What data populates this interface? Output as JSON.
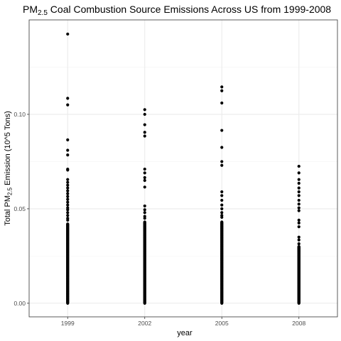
{
  "chart_data": {
    "type": "scatter",
    "title": {
      "prefix": "PM",
      "subscript": "2.5",
      "suffix": " Coal Combustion Source Emissions Across US from 1999-2008"
    },
    "xlabel": "year",
    "ylabel": {
      "prefix": "Total PM",
      "subscript": "2.5",
      "suffix": " Emission (10^5 Tons)"
    },
    "x_ticks": [
      "1999",
      "2002",
      "2005",
      "2008"
    ],
    "y_ticks": [
      {
        "value": 0,
        "label": "0.00"
      },
      {
        "value": 0.05,
        "label": "0.05"
      },
      {
        "value": 0.1,
        "label": "0.10"
      }
    ],
    "ylim": [
      -0.0072,
      0.15
    ],
    "xlim": [
      -0.5,
      3.5
    ],
    "grid": true,
    "background": "panel border, white",
    "point_color": "#000000",
    "grid_major_color": "#ebebeb",
    "grid_minor_color": "#f5f5f5",
    "panel_border_color": "#333333",
    "series": [
      {
        "x": "1999",
        "outliers": [
          0.1425,
          0.1085,
          0.105,
          0.0865,
          0.081,
          0.0785,
          0.071,
          0.0705,
          0.0655,
          0.064,
          0.0625,
          0.061,
          0.0595,
          0.058,
          0.0565,
          0.055,
          0.0535,
          0.052,
          0.0505,
          0.0495,
          0.048,
          0.0465,
          0.045,
          0.044
        ],
        "dense_from": 0.0,
        "dense_to": 0.042
      },
      {
        "x": "2002",
        "outliers": [
          0.1025,
          0.1,
          0.0945,
          0.0905,
          0.0885,
          0.071,
          0.069,
          0.0665,
          0.065,
          0.0615,
          0.0515,
          0.0495,
          0.048,
          0.046,
          0.045
        ],
        "dense_from": 0.0,
        "dense_to": 0.043
      },
      {
        "x": "2005",
        "outliers": [
          0.1145,
          0.1125,
          0.106,
          0.0915,
          0.0825,
          0.075,
          0.073,
          0.059,
          0.057,
          0.0545,
          0.052,
          0.05,
          0.048,
          0.0465,
          0.0455
        ],
        "dense_from": 0.0,
        "dense_to": 0.043
      },
      {
        "x": "2008",
        "outliers": [
          0.0725,
          0.069,
          0.0655,
          0.0635,
          0.061,
          0.059,
          0.057,
          0.0545,
          0.0525,
          0.0505,
          0.049,
          0.044,
          0.0425,
          0.0405,
          0.035,
          0.0335,
          0.0315
        ],
        "dense_from": 0.0,
        "dense_to": 0.03
      }
    ]
  }
}
